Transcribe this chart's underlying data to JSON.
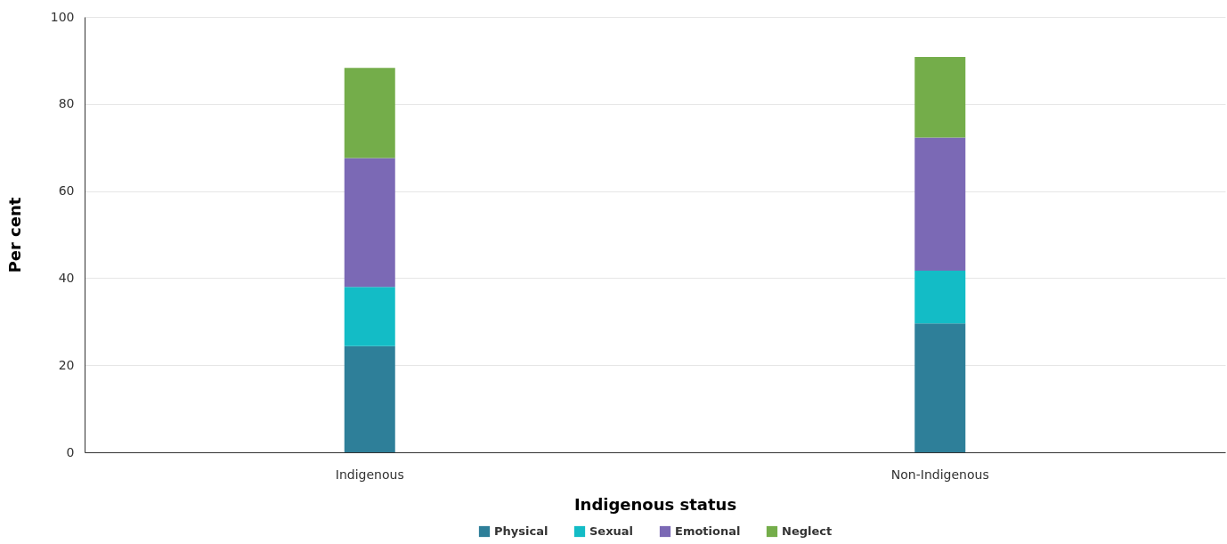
{
  "chart_data": {
    "type": "bar",
    "stacked": true,
    "xlabel": "Indigenous status",
    "ylabel": "Per cent",
    "categories": [
      "Indigenous",
      "Non-Indigenous"
    ],
    "series": [
      {
        "name": "Physical",
        "color": "#2e7f99",
        "values": [
          24.4,
          29.6
        ]
      },
      {
        "name": "Sexual",
        "color": "#13bcc6",
        "values": [
          13.6,
          12.1
        ]
      },
      {
        "name": "Emotional",
        "color": "#7b69b5",
        "values": [
          29.6,
          30.6
        ]
      },
      {
        "name": "Neglect",
        "color": "#74ad4a",
        "values": [
          20.7,
          18.5
        ]
      }
    ],
    "ylim": [
      0,
      100
    ],
    "yticks": [
      0,
      20,
      40,
      60,
      80,
      100
    ],
    "grid": "y",
    "legend": "bottom"
  }
}
